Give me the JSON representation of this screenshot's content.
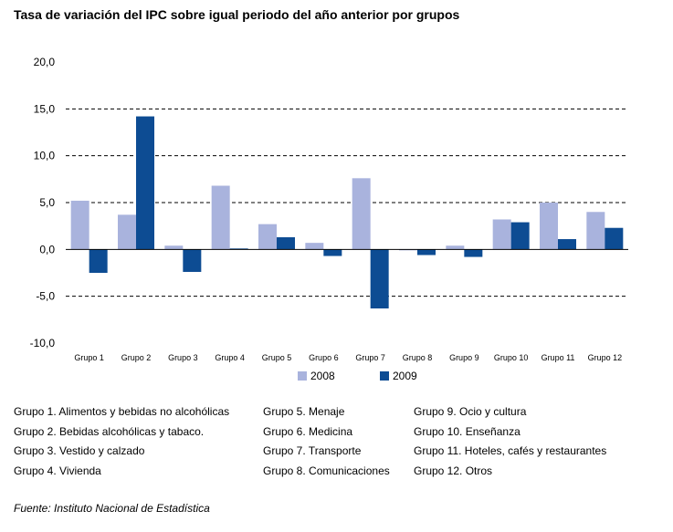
{
  "title": "Tasa de variación del IPC sobre igual periodo del año anterior por grupos",
  "chart_data": {
    "type": "bar",
    "title": "Tasa de variación del IPC sobre igual periodo del año anterior por grupos",
    "categories": [
      "Grupo 1",
      "Grupo 2",
      "Grupo 3",
      "Grupo 4",
      "Grupo 5",
      "Grupo 6",
      "Grupo 7",
      "Grupo 8",
      "Grupo 9",
      "Grupo 10",
      "Grupo 11",
      "Grupo 12"
    ],
    "series": [
      {
        "name": "2008",
        "color": "#a9b3dd",
        "values": [
          5.2,
          3.7,
          0.4,
          6.8,
          2.7,
          0.7,
          7.6,
          -0.1,
          0.4,
          3.2,
          5.0,
          4.0
        ]
      },
      {
        "name": "2009",
        "color": "#0d4c93",
        "values": [
          -2.5,
          14.2,
          -2.4,
          0.1,
          1.3,
          -0.7,
          -6.3,
          -0.6,
          -0.8,
          2.9,
          1.1,
          2.3
        ]
      }
    ],
    "ylim": [
      -10,
      20
    ],
    "yticks": [
      "20,0",
      "15,0",
      "10,0",
      "5,0",
      "0,0",
      "-5,0",
      "-10,0"
    ],
    "ytick_values": [
      20,
      15,
      10,
      5,
      0,
      -5,
      -10
    ],
    "grid": "dashed horizontal",
    "legend": "bottom"
  },
  "legend": {
    "item1": "2008",
    "item2": "2009"
  },
  "groups": [
    [
      "Grupo 1. Alimentos y bebidas no alcohólicas",
      "Grupo 2. Bebidas alcohólicas y  tabaco.",
      "Grupo 3. Vestido y calzado",
      "Grupo 4. Vivienda"
    ],
    [
      "Grupo 5. Menaje",
      "Grupo 6. Medicina",
      "Grupo 7. Transporte",
      "Grupo 8. Comunicaciones"
    ],
    [
      "Grupo 9. Ocio y cultura",
      "Grupo 10. Enseñanza",
      "Grupo 11. Hoteles, cafés y restaurantes",
      "Grupo 12. Otros"
    ]
  ],
  "source": "Fuente: Instituto Nacional de Estadística"
}
